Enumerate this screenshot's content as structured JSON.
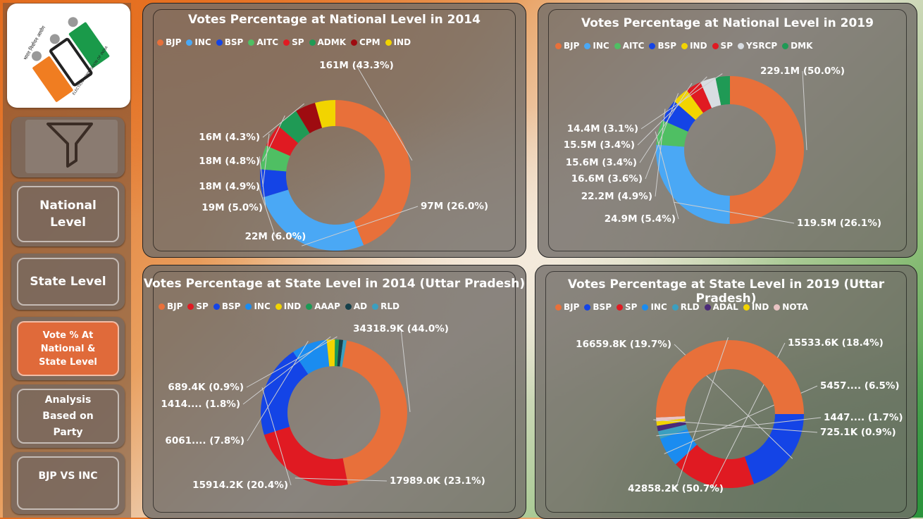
{
  "sidebar": {
    "logo_text": {
      "top": "भारत निर्वाचन आयोग",
      "bottom": "ELECTION COMMISSION OF INDIA"
    },
    "filter_icon": "funnel-icon",
    "nav": [
      {
        "label": "National Level",
        "active": false
      },
      {
        "label": "State Level",
        "active": false
      },
      {
        "label": "Vote % At National & State Level",
        "active": true
      },
      {
        "label": "Analysis Based on Party",
        "active": false
      },
      {
        "label": "BJP VS INC",
        "active": false
      }
    ]
  },
  "colors": {
    "BJP": "#e8703a",
    "INC": "#4aa8f5",
    "BSP": "#1444e6",
    "AITC": "#4fbf63",
    "SP": "#e01a22",
    "ADMK": "#1f9a55",
    "CPM": "#9e0b10",
    "IND": "#f2d400",
    "YSRCP": "#d8dde2",
    "DMK": "#1f9a55",
    "AAAP": "#1b9a55",
    "AD": "#16404a",
    "RLD": "#3b9fc0",
    "ADAL": "#4b2a78",
    "NOTA": "#e9c3c3",
    "INC_SB": "#1a8cf0"
  },
  "chart_data": [
    {
      "type": "pie",
      "title": "Votes Percentage at National Level in 2014",
      "legend": [
        "BJP",
        "INC",
        "BSP",
        "AITC",
        "SP",
        "ADMK",
        "CPM",
        "IND"
      ],
      "slices": [
        {
          "name": "BJP",
          "value": 161,
          "pct": 43.3,
          "label": "161M (43.3%)"
        },
        {
          "name": "INC",
          "value": 97,
          "pct": 26.0,
          "label": "97M (26.0%)"
        },
        {
          "name": "BSP",
          "value": 22,
          "pct": 6.0,
          "label": "22M (6.0%)"
        },
        {
          "name": "AITC",
          "value": 19,
          "pct": 5.0,
          "label": "19M (5.0%)"
        },
        {
          "name": "SP",
          "value": 18,
          "pct": 4.9,
          "label": "18M (4.9%)"
        },
        {
          "name": "ADMK",
          "value": 18,
          "pct": 4.8,
          "label": "18M (4.8%)"
        },
        {
          "name": "CPM",
          "value": 16,
          "pct": 4.3,
          "label": "16M (4.3%)"
        },
        {
          "name": "IND",
          "value": 16,
          "pct": 4.3,
          "label": ""
        }
      ]
    },
    {
      "type": "pie",
      "title": "Votes Percentage at National Level in 2019",
      "legend": [
        "BJP",
        "INC",
        "AITC",
        "BSP",
        "IND",
        "SP",
        "YSRCP",
        "DMK"
      ],
      "slices": [
        {
          "name": "BJP",
          "value": 229.1,
          "pct": 50.0,
          "label": "229.1M (50.0%)"
        },
        {
          "name": "INC",
          "value": 119.5,
          "pct": 26.1,
          "label": "119.5M (26.1%)"
        },
        {
          "name": "AITC",
          "value": 24.9,
          "pct": 5.4,
          "label": "24.9M (5.4%)"
        },
        {
          "name": "BSP",
          "value": 22.2,
          "pct": 4.9,
          "label": "22.2M (4.9%)"
        },
        {
          "name": "IND",
          "value": 16.6,
          "pct": 3.6,
          "label": "16.6M (3.6%)"
        },
        {
          "name": "SP",
          "value": 15.6,
          "pct": 3.4,
          "label": "15.6M (3.4%)"
        },
        {
          "name": "YSRCP",
          "value": 15.5,
          "pct": 3.4,
          "label": "15.5M (3.4%)"
        },
        {
          "name": "DMK",
          "value": 14.4,
          "pct": 3.1,
          "label": "14.4M (3.1%)"
        }
      ]
    },
    {
      "type": "pie",
      "title": "Votes Percentage at State Level in 2014 (Uttar Pradesh)",
      "legend": [
        "BJP",
        "SP",
        "BSP",
        "INC",
        "IND",
        "AAAP",
        "AD",
        "RLD"
      ],
      "slices": [
        {
          "name": "BJP",
          "value": 34318.9,
          "pct": 44.0,
          "label": "34318.9K (44.0%)"
        },
        {
          "name": "SP",
          "value": 17989.0,
          "pct": 23.1,
          "label": "17989.0K (23.1%)"
        },
        {
          "name": "BSP",
          "value": 15914.2,
          "pct": 20.4,
          "label": "15914.2K (20.4%)"
        },
        {
          "name": "INC",
          "value": 6061,
          "pct": 7.8,
          "label": "6061.... (7.8%)"
        },
        {
          "name": "IND",
          "value": 1414,
          "pct": 1.8,
          "label": "1414.... (1.8%)"
        },
        {
          "name": "AAAP",
          "value": 689.4,
          "pct": 0.9,
          "label": "689.4K (0.9%)"
        },
        {
          "name": "AD",
          "value": 700,
          "pct": 0.9,
          "label": ""
        },
        {
          "name": "RLD",
          "value": 600,
          "pct": 0.8,
          "label": ""
        }
      ]
    },
    {
      "type": "pie",
      "title": "Votes Percentage at State Level in 2019 (Uttar Pradesh)",
      "legend": [
        "BJP",
        "BSP",
        "SP",
        "INC",
        "RLD",
        "ADAL",
        "IND",
        "NOTA"
      ],
      "slices": [
        {
          "name": "BSP",
          "value": 16659.8,
          "pct": 19.7,
          "label": "16659.8K (19.7%)"
        },
        {
          "name": "SP",
          "value": 15533.6,
          "pct": 18.4,
          "label": "15533.6K (18.4%)"
        },
        {
          "name": "INC",
          "value": 5457,
          "pct": 6.5,
          "label": "5457.... (6.5%)"
        },
        {
          "name": "RLD",
          "value": 1447,
          "pct": 1.7,
          "label": "1447.... (1.7%)"
        },
        {
          "name": "ADAL",
          "value": 1000,
          "pct": 1.2,
          "label": ""
        },
        {
          "name": "IND",
          "value": 800,
          "pct": 0.9,
          "label": ""
        },
        {
          "name": "NOTA",
          "value": 725.1,
          "pct": 0.9,
          "label": "725.1K (0.9%)"
        },
        {
          "name": "BJP",
          "value": 42858.2,
          "pct": 50.7,
          "label": "42858.2K (50.7%)"
        }
      ]
    }
  ]
}
